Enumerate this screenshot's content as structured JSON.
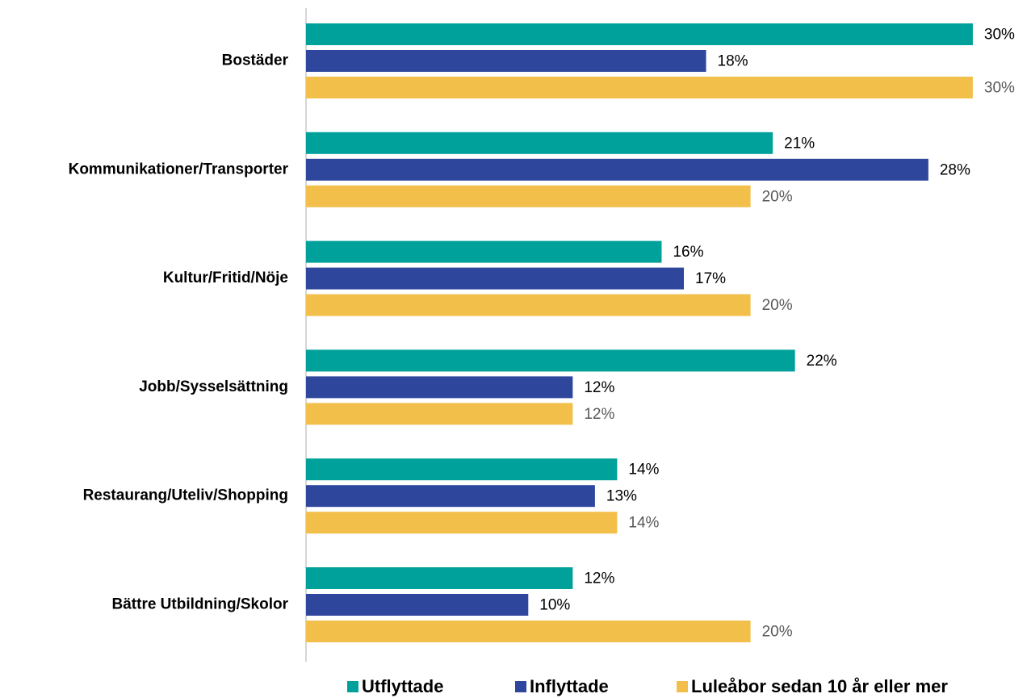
{
  "chart_data": {
    "type": "bar",
    "orientation": "horizontal",
    "categories": [
      "Bostäder",
      "Kommunikationer/Transporter",
      "Kultur/Fritid/Nöje",
      "Jobb/Sysselsättning",
      "Restaurang/Uteliv/Shopping",
      "Bättre Utbildning/Skolor"
    ],
    "series": [
      {
        "name": "Utflyttade",
        "color": "#00a19a",
        "label_color": "#000000",
        "values": [
          30,
          21,
          16,
          22,
          14,
          12
        ],
        "value_labels": [
          "30%",
          "21%",
          "16%",
          "22%",
          "14%",
          "12%"
        ]
      },
      {
        "name": "Inflyttade",
        "color": "#2e479c",
        "label_color": "#000000",
        "values": [
          18,
          28,
          17,
          12,
          13,
          10
        ],
        "value_labels": [
          "18%",
          "28%",
          "17%",
          "12%",
          "13%",
          "10%"
        ]
      },
      {
        "name": "Luleåbor sedan 10 år eller mer",
        "color": "#f2bf4a",
        "label_color": "#595959",
        "values": [
          30,
          20,
          20,
          12,
          14,
          20
        ],
        "value_labels": [
          "30%",
          "20%",
          "20%",
          "12%",
          "14%",
          "20%"
        ]
      }
    ]
  }
}
